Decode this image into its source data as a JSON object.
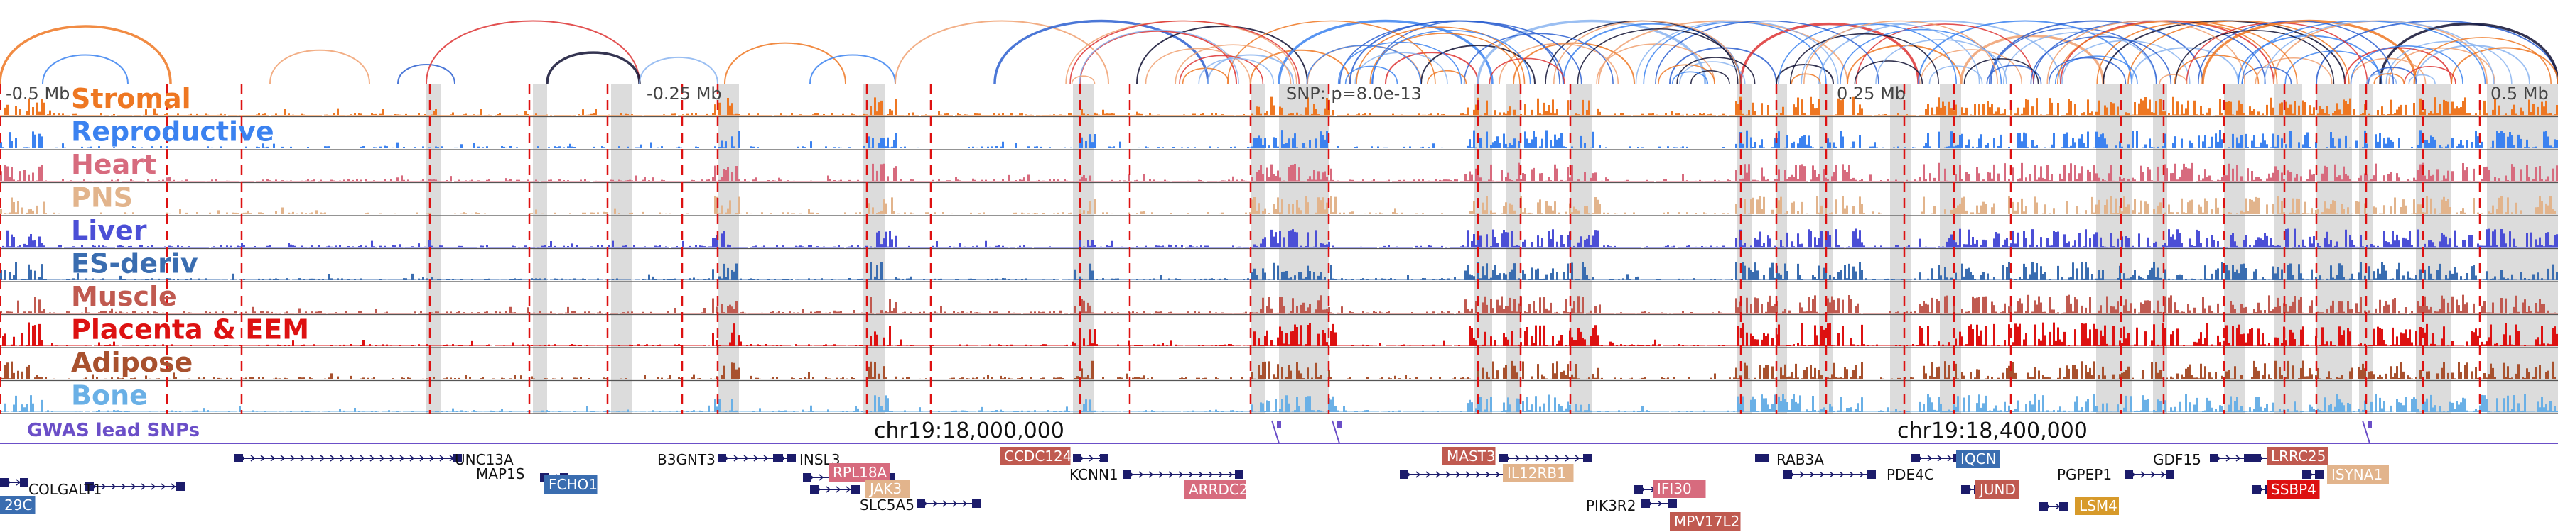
{
  "tracks": [
    {
      "name": "Stromal",
      "color": "#ee7722"
    },
    {
      "name": "Reproductive",
      "color": "#3b82f0"
    },
    {
      "name": "Heart",
      "color": "#d76b7e"
    },
    {
      "name": "PNS",
      "color": "#e2b48c"
    },
    {
      "name": "Liver",
      "color": "#4b4fd6"
    },
    {
      "name": "ES-deriv",
      "color": "#3a6db0"
    },
    {
      "name": "Muscle",
      "color": "#c05a50"
    },
    {
      "name": "Placenta & EEM",
      "color": "#dd1111"
    },
    {
      "name": "Adipose",
      "color": "#a8512e"
    },
    {
      "name": "Bone",
      "color": "#6ab0e6"
    }
  ],
  "positions": [
    {
      "text": "-0.5 Mb"
    },
    {
      "text": "-0.25 Mb"
    },
    {
      "text": "SNP: p=8.0e-13"
    },
    {
      "text": "0.25 Mb"
    },
    {
      "text": "0.5 Mb"
    }
  ],
  "chrom": [
    "chr19:18,000,000",
    "chr19:18,400,000"
  ],
  "gwas_label": "GWAS lead SNPs",
  "genes": [
    {
      "name": "29C",
      "boxed": true,
      "color": "#3a6db0"
    },
    {
      "name": "COLGALT1",
      "boxed": false
    },
    {
      "name": "UNC13A",
      "boxed": false
    },
    {
      "name": "MAP1S",
      "boxed": false
    },
    {
      "name": "FCHO1",
      "boxed": true,
      "color": "#3a6db0"
    },
    {
      "name": "B3GNT3",
      "boxed": false
    },
    {
      "name": "INSL3",
      "boxed": false
    },
    {
      "name": "RPL18A",
      "boxed": true,
      "color": "#d76b7e"
    },
    {
      "name": "JAK3",
      "boxed": true,
      "color": "#e2b48c"
    },
    {
      "name": "SLC5A5",
      "boxed": false
    },
    {
      "name": "CCDC124",
      "boxed": true,
      "color": "#c05a50"
    },
    {
      "name": "KCNN1",
      "boxed": false
    },
    {
      "name": "ARRDC2",
      "boxed": true,
      "color": "#d76b7e"
    },
    {
      "name": "MAST3",
      "boxed": true,
      "color": "#c05a50"
    },
    {
      "name": "IL12RB1",
      "boxed": true,
      "color": "#e2b48c"
    },
    {
      "name": "IFI30",
      "boxed": true,
      "color": "#d76b7e"
    },
    {
      "name": "PIK3R2",
      "boxed": false
    },
    {
      "name": "MPV17L2",
      "boxed": true,
      "color": "#c05a50"
    },
    {
      "name": "RAB3A",
      "boxed": false
    },
    {
      "name": "PDE4C",
      "boxed": false
    },
    {
      "name": "IQCN",
      "boxed": true,
      "color": "#3a6db0"
    },
    {
      "name": "JUND",
      "boxed": true,
      "color": "#c05a50"
    },
    {
      "name": "LSM4",
      "boxed": true,
      "color": "#d79a2a"
    },
    {
      "name": "GDF15",
      "boxed": false
    },
    {
      "name": "PGPEP1",
      "boxed": false
    },
    {
      "name": "LRRC25",
      "boxed": true,
      "color": "#c05a50"
    },
    {
      "name": "SSBP4",
      "boxed": true,
      "color": "#dd1111"
    },
    {
      "name": "ISYNA1",
      "boxed": true,
      "color": "#e2b48c"
    }
  ],
  "colors": {
    "gwas": "#6b4fc8",
    "redline": "#dd1111",
    "shade": "#dcdcdc",
    "gene_line": "#1c1c6b"
  }
}
